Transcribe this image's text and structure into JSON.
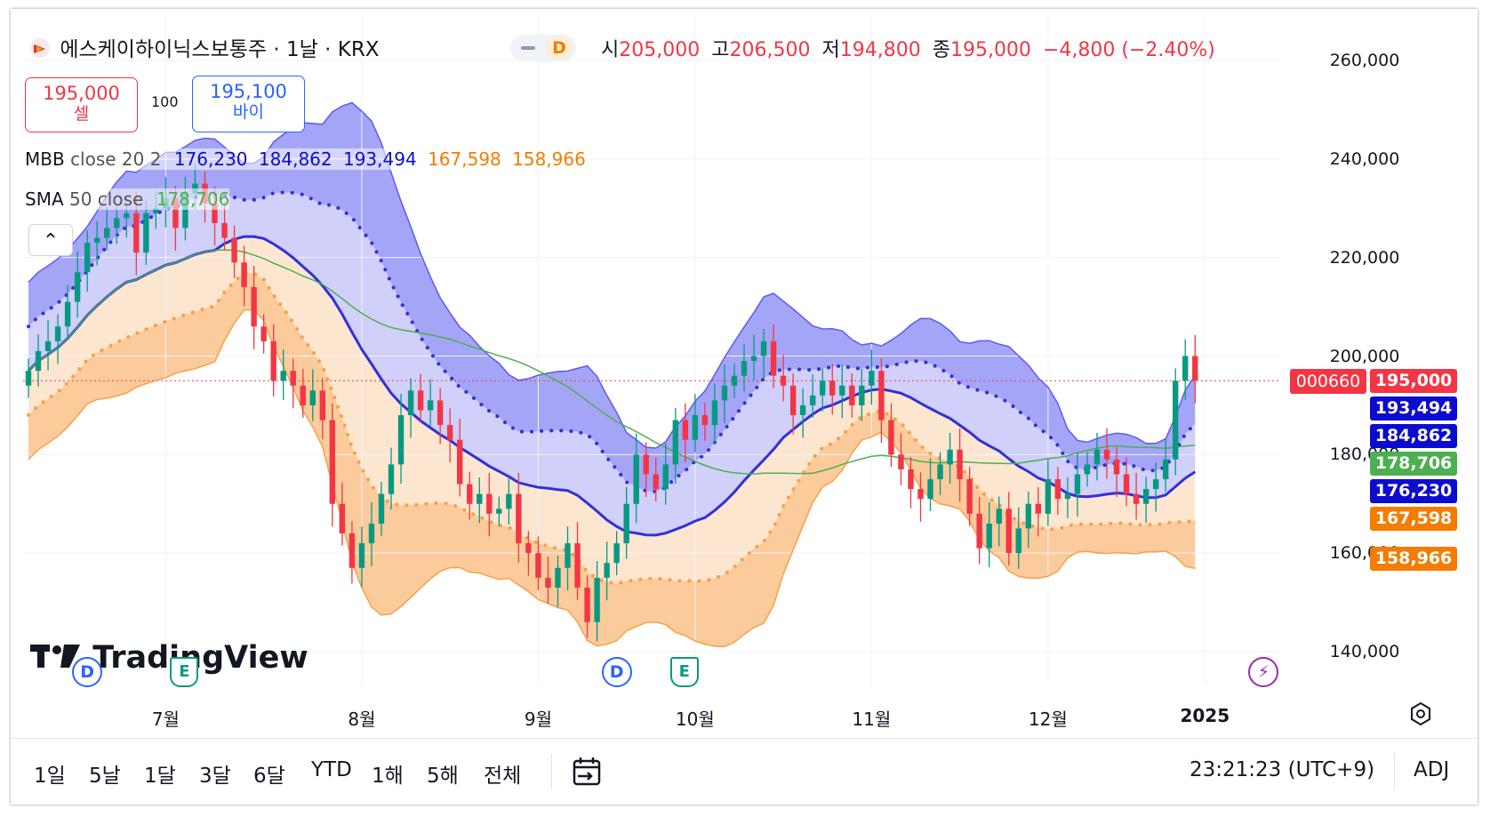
{
  "header": {
    "symbol_title": "에스케이하이닉스보통주 · 1날 · KRX",
    "interval_badge": "D",
    "ohlc": {
      "open_label": "시",
      "open": "205,000",
      "high_label": "고",
      "high": "206,500",
      "low_label": "저",
      "low": "194,800",
      "close_label": "종",
      "close": "195,000",
      "change": "−4,800 (−2.40%)"
    }
  },
  "trade": {
    "sell_price": "195,000",
    "sell_label": "셀",
    "spread": "100",
    "buy_price": "195,100",
    "buy_label": "바이"
  },
  "indicators": {
    "mbb": {
      "name": "MBB",
      "params": "close 20 2",
      "v1": "176,230",
      "v2": "184,862",
      "v3": "193,494",
      "v4": "167,598",
      "v5": "158,966"
    },
    "sma": {
      "name": "SMA",
      "params": "50 close",
      "v1": "178,706"
    }
  },
  "collapse_glyph": "⌃",
  "watermark": "TradingView",
  "price_tags": [
    {
      "text": "195,000",
      "price": 195000,
      "color": "#f23645"
    },
    {
      "text": "193,494",
      "price": 193494,
      "color": "#0c0ccf"
    },
    {
      "text": "184,862",
      "price": 184862,
      "color": "#0c0ccf"
    },
    {
      "text": "178,706",
      "price": 178706,
      "color": "#4caf50"
    },
    {
      "text": "176,230",
      "price": 176230,
      "color": "#0c0ccf"
    },
    {
      "text": "167,598",
      "price": 167598,
      "color": "#f57c00"
    },
    {
      "text": "158,966",
      "price": 158966,
      "color": "#f57c00"
    }
  ],
  "symbol_tag": "000660",
  "events": [
    {
      "type": "D",
      "date_index": 6
    },
    {
      "type": "E",
      "date_index": 16
    },
    {
      "type": "D",
      "date_index": 60
    },
    {
      "type": "E",
      "date_index": 67
    },
    {
      "type": "flash",
      "date_index": 126
    }
  ],
  "footer": {
    "ranges": [
      "1일",
      "5날",
      "1달",
      "3달",
      "6달",
      "YTD",
      "1해",
      "5해",
      "전체"
    ],
    "time": "23:21:23 (UTC+9)",
    "adj": "ADJ"
  },
  "colors": {
    "up": "#089981",
    "down": "#f23645",
    "upper_band": "#5b5bf0",
    "mid_band": "#3030d8",
    "lower_band": "#f7a04a",
    "sma": "#4caf50"
  },
  "chart_data": {
    "type": "candlestick",
    "x_ticks": [
      "7월",
      "8월",
      "9월",
      "10월",
      "11월",
      "12월",
      "2025"
    ],
    "x_tick_index": [
      7,
      17,
      26,
      34,
      43,
      52,
      60
    ],
    "y_ticks": [
      140000,
      160000,
      180000,
      200000,
      220000,
      240000,
      260000
    ],
    "y_tick_labels": [
      "140,000",
      "160,000",
      "180,000",
      "200,000",
      "220,000",
      "240,000",
      "260,000"
    ],
    "ylim": [
      133000,
      270000
    ],
    "last_close_line": 195000,
    "candles_close": [
      197000,
      201000,
      203000,
      206000,
      211000,
      217000,
      223000,
      224000,
      226000,
      228000,
      229000,
      221000,
      229000,
      230000,
      232000,
      226000,
      233000,
      235000,
      231000,
      227000,
      224000,
      219000,
      214000,
      206000,
      203000,
      195000,
      197000,
      194000,
      190000,
      193000,
      187000,
      170000,
      164000,
      157000,
      162000,
      166000,
      172000,
      178000,
      188000,
      193000,
      189000,
      191000,
      186000,
      183000,
      174000,
      170000,
      172000,
      168000,
      169000,
      172000,
      162000,
      160000,
      155000,
      153000,
      157000,
      162000,
      153000,
      146000,
      155000,
      158000,
      162000,
      170000,
      180000,
      176000,
      173000,
      178000,
      187000,
      183000,
      188000,
      186000,
      191000,
      194000,
      196000,
      199000,
      200000,
      203000,
      196000,
      194000,
      188000,
      190000,
      192000,
      195000,
      192000,
      194000,
      190000,
      194000,
      197000,
      187000,
      180000,
      177000,
      173000,
      171000,
      175000,
      178000,
      181000,
      175000,
      168000,
      161000,
      166000,
      169000,
      160000,
      165000,
      170000,
      168000,
      175000,
      171000,
      172000,
      176000,
      178000,
      181000,
      179000,
      176000,
      172000,
      170000,
      173000,
      175000,
      179000,
      195000,
      200000,
      195000
    ],
    "sma50_end": 178706,
    "bollinger_end": {
      "upper2": 193494,
      "upper1": 184862,
      "mid": 176230,
      "lower1": 167598,
      "lower2": 158966
    }
  }
}
